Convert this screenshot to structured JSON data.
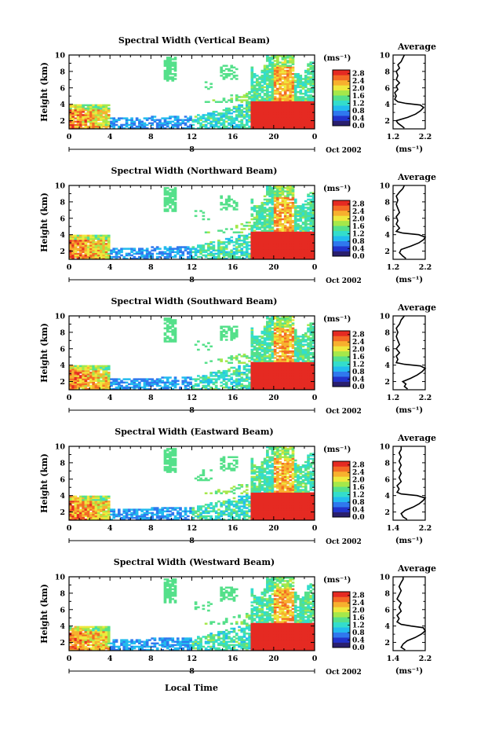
{
  "chart_data": {
    "type": "heatmap",
    "xlabel": "Local Time",
    "date_label": "Oct 2002",
    "day_label": "8",
    "x_ticks": [
      "0",
      "4",
      "8",
      "12",
      "16",
      "20",
      "0"
    ],
    "x_range": [
      0,
      24
    ],
    "y_label": "Height (km)",
    "y_ticks": [
      "2",
      "4",
      "6",
      "8",
      "10"
    ],
    "y_range": [
      1,
      10
    ],
    "colorbar": {
      "unit": "(ms⁻¹)",
      "ticks": [
        "0.0",
        "0.4",
        "0.8",
        "1.2",
        "1.6",
        "2.0",
        "2.4",
        "2.8"
      ],
      "range": [
        0,
        3.0
      ],
      "colors": [
        "#2a1f6e",
        "#2233cc",
        "#2f78ee",
        "#22bbee",
        "#33ddcc",
        "#55e08a",
        "#a5e84a",
        "#eee83c",
        "#f7b02e",
        "#f36a25",
        "#e52a22"
      ]
    },
    "average_title": "Average",
    "average_unit": "(ms⁻¹)",
    "panels": [
      {
        "title": "Spectral Width (Vertical Beam)",
        "avg_xticks": [
          "1.2",
          "2.2"
        ],
        "avg_xrange": [
          1.2,
          2.2
        ],
        "avg_profile": [
          [
            1.55,
            1.1
          ],
          [
            1.45,
            1.4
          ],
          [
            1.35,
            1.7
          ],
          [
            1.3,
            2.0
          ],
          [
            1.65,
            2.4
          ],
          [
            1.9,
            2.8
          ],
          [
            2.05,
            3.2
          ],
          [
            2.15,
            3.6
          ],
          [
            2.05,
            3.9
          ],
          [
            1.6,
            4.1
          ],
          [
            1.35,
            4.3
          ],
          [
            1.25,
            4.6
          ],
          [
            1.3,
            5.0
          ],
          [
            1.25,
            5.4
          ],
          [
            1.35,
            5.8
          ],
          [
            1.3,
            6.2
          ],
          [
            1.4,
            6.6
          ],
          [
            1.3,
            7.0
          ],
          [
            1.35,
            7.5
          ],
          [
            1.3,
            8.0
          ],
          [
            1.4,
            8.4
          ],
          [
            1.35,
            8.8
          ],
          [
            1.45,
            9.2
          ],
          [
            1.5,
            9.6
          ],
          [
            1.55,
            10.0
          ]
        ]
      },
      {
        "title": "Spectral Width (Northward Beam)",
        "avg_xticks": [
          "1.2",
          "2.2"
        ],
        "avg_xrange": [
          1.2,
          2.2
        ],
        "avg_profile": [
          [
            1.6,
            1.1
          ],
          [
            1.5,
            1.4
          ],
          [
            1.4,
            1.8
          ],
          [
            1.45,
            2.2
          ],
          [
            1.75,
            2.6
          ],
          [
            2.0,
            3.0
          ],
          [
            2.15,
            3.4
          ],
          [
            2.2,
            3.7
          ],
          [
            2.0,
            4.0
          ],
          [
            1.5,
            4.2
          ],
          [
            1.3,
            4.4
          ],
          [
            1.4,
            4.8
          ],
          [
            1.3,
            5.3
          ],
          [
            1.35,
            5.7
          ],
          [
            1.3,
            6.2
          ],
          [
            1.4,
            6.7
          ],
          [
            1.35,
            7.2
          ],
          [
            1.3,
            7.7
          ],
          [
            1.35,
            8.2
          ],
          [
            1.3,
            8.7
          ],
          [
            1.4,
            9.2
          ],
          [
            1.5,
            9.6
          ],
          [
            1.55,
            10.0
          ]
        ]
      },
      {
        "title": "Spectral Width (Southward Beam)",
        "avg_xticks": [
          "1.2",
          "2.2"
        ],
        "avg_xrange": [
          1.2,
          2.2
        ],
        "avg_profile": [
          [
            1.65,
            1.1
          ],
          [
            1.55,
            1.4
          ],
          [
            1.6,
            1.7
          ],
          [
            1.5,
            2.0
          ],
          [
            1.75,
            2.4
          ],
          [
            1.95,
            2.8
          ],
          [
            2.1,
            3.2
          ],
          [
            2.2,
            3.6
          ],
          [
            2.05,
            3.9
          ],
          [
            1.55,
            4.1
          ],
          [
            1.3,
            4.3
          ],
          [
            1.35,
            4.7
          ],
          [
            1.3,
            5.1
          ],
          [
            1.4,
            5.5
          ],
          [
            1.3,
            6.0
          ],
          [
            1.4,
            6.5
          ],
          [
            1.35,
            7.0
          ],
          [
            1.3,
            7.5
          ],
          [
            1.35,
            8.0
          ],
          [
            1.3,
            8.5
          ],
          [
            1.4,
            9.0
          ],
          [
            1.45,
            9.5
          ],
          [
            1.55,
            10.0
          ]
        ]
      },
      {
        "title": "Spectral Width (Eastward Beam)",
        "avg_xticks": [
          "1.4",
          "2.2"
        ],
        "avg_xrange": [
          1.4,
          2.2
        ],
        "avg_profile": [
          [
            1.75,
            1.1
          ],
          [
            1.65,
            1.4
          ],
          [
            1.6,
            1.8
          ],
          [
            1.7,
            2.2
          ],
          [
            1.9,
            2.6
          ],
          [
            2.05,
            3.0
          ],
          [
            2.15,
            3.4
          ],
          [
            2.2,
            3.7
          ],
          [
            2.0,
            4.0
          ],
          [
            1.6,
            4.2
          ],
          [
            1.5,
            4.4
          ],
          [
            1.55,
            4.8
          ],
          [
            1.5,
            5.2
          ],
          [
            1.6,
            5.7
          ],
          [
            1.55,
            6.2
          ],
          [
            1.6,
            6.7
          ],
          [
            1.55,
            7.2
          ],
          [
            1.6,
            7.7
          ],
          [
            1.55,
            8.2
          ],
          [
            1.6,
            8.7
          ],
          [
            1.55,
            9.2
          ],
          [
            1.6,
            9.6
          ],
          [
            1.6,
            10.0
          ]
        ]
      },
      {
        "title": "Spectral Width (Westward Beam)",
        "avg_xticks": [
          "1.4",
          "2.2"
        ],
        "avg_xrange": [
          1.4,
          2.2
        ],
        "avg_profile": [
          [
            1.7,
            1.1
          ],
          [
            1.6,
            1.4
          ],
          [
            1.65,
            1.8
          ],
          [
            1.75,
            2.2
          ],
          [
            1.95,
            2.6
          ],
          [
            2.1,
            3.0
          ],
          [
            2.2,
            3.4
          ],
          [
            2.15,
            3.8
          ],
          [
            1.85,
            4.0
          ],
          [
            1.6,
            4.2
          ],
          [
            1.5,
            4.5
          ],
          [
            1.55,
            4.9
          ],
          [
            1.5,
            5.3
          ],
          [
            1.6,
            5.8
          ],
          [
            1.55,
            6.3
          ],
          [
            1.6,
            6.8
          ],
          [
            1.5,
            7.3
          ],
          [
            1.55,
            7.8
          ],
          [
            1.6,
            8.3
          ],
          [
            1.55,
            8.8
          ],
          [
            1.6,
            9.3
          ],
          [
            1.65,
            9.7
          ],
          [
            1.65,
            10.0
          ]
        ]
      }
    ]
  }
}
